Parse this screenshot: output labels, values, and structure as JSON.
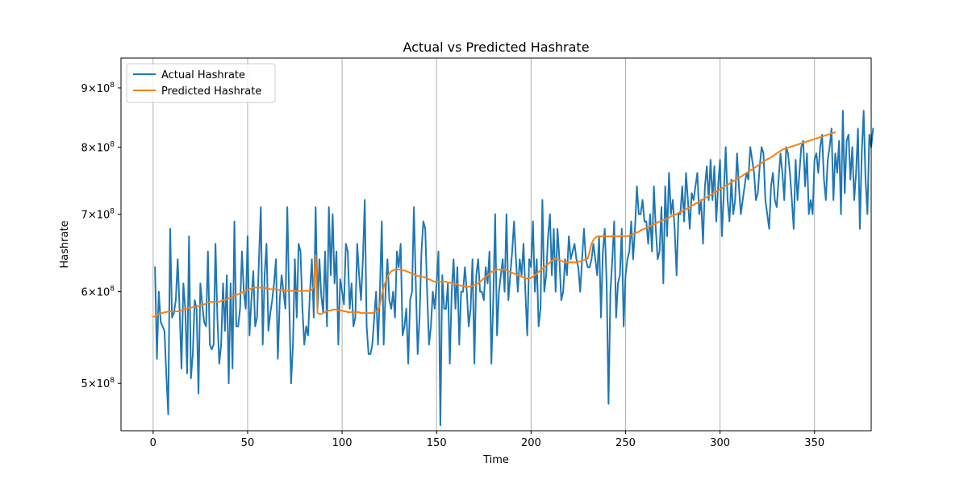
{
  "chart_data": {
    "type": "line",
    "title": "Actual vs Predicted Hashrate",
    "xlabel": "Time",
    "ylabel": "Hashrate",
    "x_ticks": [
      0,
      50,
      100,
      150,
      200,
      250,
      300,
      350
    ],
    "x_tick_labels": [
      "0",
      "50",
      "100",
      "150",
      "200",
      "250",
      "300",
      "350"
    ],
    "xlim": [
      -17,
      380
    ],
    "y_scale": "log",
    "ylim": [
      455000000,
      955000000
    ],
    "y_ticks": [
      500000000,
      600000000,
      700000000,
      800000000,
      900000000
    ],
    "y_tick_labels": [
      {
        "base": "5×10",
        "exp": "8"
      },
      {
        "base": "6×10",
        "exp": "8"
      },
      {
        "base": "7×10",
        "exp": "8"
      },
      {
        "base": "8×10",
        "exp": "8"
      },
      {
        "base": "9×10",
        "exp": "8"
      }
    ],
    "x_grid": true,
    "y_grid": false,
    "legend_position": "top-left",
    "colors": {
      "actual": "#1f77b4",
      "predicted": "#ff7f0e",
      "grid": "#b0b0b0",
      "axes": "#000000"
    },
    "series": [
      {
        "name": "Actual Hashrate",
        "color": "#1f77b4",
        "x_start": 1,
        "values": [
          630,
          525,
          600,
          565,
          560,
          555,
          508,
          470,
          680,
          570,
          575,
          590,
          640,
          580,
          515,
          610,
          580,
          510,
          670,
          505,
          530,
          590,
          580,
          490,
          610,
          585,
          565,
          560,
          650,
          540,
          535,
          540,
          660,
          570,
          520,
          540,
          610,
          555,
          620,
          500,
          610,
          515,
          690,
          560,
          560,
          580,
          650,
          600,
          580,
          670,
          550,
          590,
          625,
          560,
          570,
          640,
          710,
          540,
          620,
          660,
          555,
          575,
          590,
          610,
          640,
          525,
          590,
          620,
          600,
          580,
          710,
          590,
          500,
          540,
          640,
          570,
          660,
          650,
          580,
          540,
          560,
          550,
          600,
          640,
          570,
          710,
          580,
          640,
          595,
          575,
          650,
          560,
          710,
          620,
          700,
          610,
          650,
          540,
          615,
          600,
          585,
          660,
          650,
          580,
          610,
          560,
          570,
          660,
          620,
          590,
          640,
          720,
          560,
          530,
          530,
          540,
          570,
          600,
          540,
          600,
          690,
          540,
          600,
          640,
          590,
          580,
          600,
          570,
          650,
          630,
          660,
          550,
          560,
          580,
          520,
          590,
          600,
          710,
          610,
          530,
          570,
          650,
          690,
          680,
          600,
          540,
          560,
          600,
          580,
          610,
          650,
          460,
          620,
          580,
          580,
          610,
          520,
          600,
          640,
          580,
          630,
          540,
          600,
          600,
          630,
          600,
          560,
          580,
          640,
          520,
          620,
          640,
          600,
          600,
          590,
          630,
          610,
          650,
          520,
          590,
          700,
          550,
          600,
          620,
          640,
          600,
          700,
          590,
          620,
          650,
          690,
          640,
          600,
          640,
          620,
          660,
          600,
          550,
          640,
          630,
          690,
          600,
          640,
          560,
          580,
          720,
          600,
          620,
          670,
          700,
          620,
          680,
          600,
          680,
          640,
          590,
          600,
          640,
          620,
          670,
          640,
          650,
          660,
          640,
          630,
          600,
          640,
          680,
          640,
          630,
          630,
          640,
          660,
          640,
          620,
          670,
          570,
          650,
          680,
          610,
          480,
          600,
          640,
          690,
          570,
          610,
          620,
          680,
          560,
          620,
          640,
          650,
          690,
          640,
          680,
          740,
          700,
          700,
          720,
          690,
          690,
          660,
          700,
          650,
          740,
          680,
          640,
          650,
          710,
          610,
          740,
          670,
          760,
          700,
          720,
          680,
          620,
          700,
          700,
          740,
          690,
          760,
          720,
          680,
          730,
          720,
          740,
          760,
          700,
          720,
          660,
          740,
          770,
          720,
          780,
          720,
          770,
          690,
          740,
          780,
          670,
          730,
          800,
          720,
          690,
          750,
          700,
          720,
          790,
          740,
          700,
          720,
          740,
          760,
          750,
          800,
          780,
          760,
          720,
          730,
          770,
          800,
          790,
          720,
          700,
          680,
          740,
          760,
          720,
          710,
          750,
          790,
          760,
          720,
          800,
          790,
          760,
          720,
          680,
          780,
          720,
          760,
          800,
          810,
          740,
          790,
          700,
          720,
          700,
          780,
          790,
          760,
          800,
          820,
          750,
          720,
          780,
          800,
          830,
          720,
          790,
          760,
          810,
          700,
          860,
          730,
          810,
          820,
          750,
          800,
          720,
          760,
          830,
          680,
          790,
          860,
          750,
          700,
          820,
          800,
          830
        ]
      },
      {
        "name": "Predicted Hashrate",
        "color": "#ff7f0e",
        "x_start": 0,
        "values": [
          571,
          571,
          572,
          574,
          575,
          575,
          576,
          576,
          577,
          577,
          577,
          577,
          577,
          577,
          577,
          578,
          579,
          580,
          580,
          581,
          581,
          582,
          582,
          583,
          583,
          584,
          584,
          585,
          586,
          587,
          588,
          588,
          588,
          588,
          588,
          588,
          589,
          590,
          590,
          591,
          592,
          593,
          594,
          595,
          596,
          597,
          598,
          599,
          600,
          601,
          602,
          603,
          604,
          605,
          605,
          605,
          605,
          605,
          605,
          605,
          604,
          604,
          603,
          603,
          603,
          603,
          602,
          602,
          602,
          602,
          601,
          601,
          601,
          601,
          601,
          601,
          601,
          601,
          601,
          601,
          601,
          601,
          601,
          601,
          602,
          606,
          645,
          575,
          574,
          574,
          575,
          576,
          577,
          578,
          578,
          579,
          579,
          579,
          578,
          578,
          578,
          577,
          577,
          576,
          576,
          576,
          576,
          576,
          576,
          576,
          575,
          575,
          575,
          575,
          575,
          575,
          575,
          576,
          577,
          578,
          585,
          596,
          605,
          612,
          618,
          622,
          625,
          626,
          627,
          627,
          627,
          627,
          626,
          626,
          625,
          624,
          623,
          622,
          621,
          620,
          619,
          619,
          618,
          618,
          617,
          616,
          615,
          614,
          613,
          612,
          612,
          612,
          612,
          612,
          612,
          612,
          611,
          611,
          610,
          610,
          609,
          609,
          608,
          607,
          607,
          606,
          606,
          606,
          606,
          607,
          608,
          609,
          610,
          612,
          614,
          616,
          618,
          620,
          622,
          624,
          625,
          626,
          627,
          627,
          627,
          627,
          627,
          626,
          625,
          624,
          623,
          622,
          621,
          620,
          619,
          618,
          617,
          616,
          616,
          616,
          617,
          618,
          620,
          622,
          624,
          626,
          628,
          630,
          632,
          634,
          636,
          638,
          640,
          641,
          640,
          639,
          638,
          637,
          636,
          636,
          636,
          636,
          636,
          636,
          636,
          637,
          637,
          638,
          639,
          640,
          641,
          650,
          660,
          665,
          668,
          670,
          670,
          670,
          670,
          670,
          670,
          670,
          670,
          670,
          670,
          670,
          670,
          670,
          670,
          670,
          670,
          670,
          671,
          672,
          673,
          674,
          675,
          676,
          678,
          679,
          680,
          681,
          682,
          684,
          685,
          686,
          687,
          689,
          690,
          691,
          692,
          693,
          694,
          695,
          697,
          698,
          699,
          700,
          702,
          703,
          704,
          706,
          707,
          708,
          710,
          712,
          713,
          715,
          716,
          718,
          719,
          721,
          723,
          724,
          726,
          727,
          729,
          731,
          732,
          734,
          736,
          737,
          739,
          741,
          742,
          744,
          746,
          748,
          749,
          751,
          753,
          754,
          756,
          758,
          760,
          762,
          764,
          765,
          767,
          769,
          771,
          773,
          775,
          777,
          779,
          781,
          782,
          784,
          786,
          788,
          790,
          792,
          794,
          796,
          797,
          798,
          799,
          800,
          801,
          802,
          803,
          804,
          805,
          806,
          807,
          808,
          809,
          810,
          811,
          812,
          813,
          814,
          815,
          816,
          817,
          818,
          819,
          820,
          821,
          822,
          823,
          824
        ]
      }
    ]
  }
}
